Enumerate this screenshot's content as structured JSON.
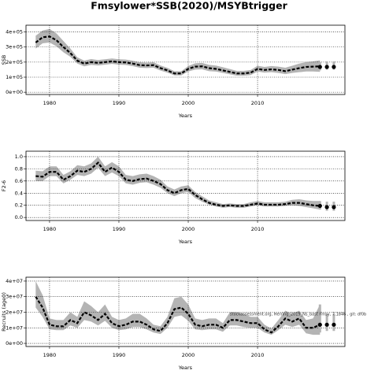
{
  "chart_data": [
    {
      "type": "line",
      "title": "Fmsylower*SSB(2020)/MSYBtrigger",
      "xlabel": "Years",
      "ylabel": "SSB",
      "grid": true,
      "color": "#000000",
      "band_color": "#b4b4b4",
      "x": [
        1978,
        1979,
        1980,
        1981,
        1982,
        1983,
        1984,
        1985,
        1986,
        1987,
        1988,
        1989,
        1990,
        1991,
        1992,
        1993,
        1994,
        1995,
        1996,
        1997,
        1998,
        1999,
        2000,
        2001,
        2002,
        2003,
        2004,
        2005,
        2006,
        2007,
        2008,
        2009,
        2010,
        2011,
        2012,
        2013,
        2014,
        2015,
        2016,
        2017,
        2018,
        2019
      ],
      "values": [
        330000,
        365000,
        370000,
        345000,
        300000,
        260000,
        210000,
        190000,
        200000,
        195000,
        200000,
        205000,
        200000,
        198000,
        190000,
        180000,
        178000,
        180000,
        160000,
        145000,
        125000,
        125000,
        155000,
        170000,
        172000,
        160000,
        155000,
        145000,
        135000,
        125000,
        125000,
        130000,
        155000,
        148000,
        152000,
        148000,
        140000,
        150000,
        160000,
        168000,
        170000,
        172000
      ],
      "lower": [
        290000,
        325000,
        330000,
        305000,
        265000,
        235000,
        190000,
        172000,
        182000,
        178000,
        183000,
        188000,
        183000,
        181000,
        173000,
        163000,
        161000,
        163000,
        144000,
        130000,
        112000,
        112000,
        138000,
        150000,
        152000,
        140000,
        137000,
        128000,
        119000,
        110000,
        110000,
        114000,
        137000,
        130000,
        133000,
        128000,
        120000,
        128000,
        133000,
        138000,
        138000,
        135000
      ],
      "upper": [
        375000,
        410000,
        420000,
        390000,
        340000,
        290000,
        232000,
        210000,
        220000,
        214000,
        219000,
        224000,
        219000,
        217000,
        209000,
        199000,
        197000,
        199000,
        178000,
        162000,
        140000,
        140000,
        174000,
        192000,
        195000,
        182000,
        177000,
        166000,
        154000,
        142000,
        142000,
        148000,
        176000,
        168000,
        174000,
        170000,
        163000,
        176000,
        190000,
        200000,
        205000,
        212000
      ],
      "proj_x": [
        2019,
        2020,
        2021
      ],
      "proj_values": [
        168000,
        168000,
        168000
      ],
      "proj_lower": [
        145000,
        150000,
        150000
      ],
      "proj_upper": [
        200000,
        205000,
        205000
      ],
      "xlim": [
        1976.6,
        2022.6
      ],
      "xticks": [
        1980,
        1990,
        2000,
        2010
      ],
      "ylim": [
        -15000,
        445000
      ],
      "yticks": [
        {
          "value": 0,
          "label": "0e+00"
        },
        {
          "value": 100000,
          "label": "1e+05"
        },
        {
          "value": 200000,
          "label": "2e+05"
        },
        {
          "value": 300000,
          "label": "3e+05"
        },
        {
          "value": 400000,
          "label": "4e+05"
        }
      ]
    },
    {
      "type": "line",
      "xlabel": "Years",
      "ylabel": "F2-6",
      "grid": true,
      "color": "#000000",
      "band_color": "#b4b4b4",
      "x": [
        1978,
        1979,
        1980,
        1981,
        1982,
        1983,
        1984,
        1985,
        1986,
        1987,
        1988,
        1989,
        1990,
        1991,
        1992,
        1993,
        1994,
        1995,
        1996,
        1997,
        1998,
        1999,
        2000,
        2001,
        2002,
        2003,
        2004,
        2005,
        2006,
        2007,
        2008,
        2009,
        2010,
        2011,
        2012,
        2013,
        2014,
        2015,
        2016,
        2017,
        2018,
        2019
      ],
      "values": [
        0.68,
        0.67,
        0.75,
        0.75,
        0.62,
        0.68,
        0.77,
        0.75,
        0.8,
        0.9,
        0.75,
        0.82,
        0.75,
        0.62,
        0.6,
        0.63,
        0.64,
        0.6,
        0.55,
        0.45,
        0.4,
        0.45,
        0.47,
        0.37,
        0.3,
        0.24,
        0.21,
        0.19,
        0.2,
        0.19,
        0.19,
        0.21,
        0.23,
        0.21,
        0.21,
        0.21,
        0.22,
        0.24,
        0.24,
        0.22,
        0.2,
        0.19
      ],
      "lower": [
        0.6,
        0.6,
        0.68,
        0.68,
        0.56,
        0.62,
        0.7,
        0.68,
        0.72,
        0.82,
        0.68,
        0.74,
        0.68,
        0.56,
        0.54,
        0.57,
        0.58,
        0.54,
        0.49,
        0.4,
        0.35,
        0.4,
        0.42,
        0.32,
        0.26,
        0.21,
        0.18,
        0.16,
        0.17,
        0.16,
        0.16,
        0.18,
        0.2,
        0.18,
        0.18,
        0.18,
        0.19,
        0.2,
        0.19,
        0.17,
        0.15,
        0.13
      ],
      "upper": [
        0.77,
        0.76,
        0.84,
        0.84,
        0.7,
        0.76,
        0.86,
        0.84,
        0.89,
        1.0,
        0.84,
        0.91,
        0.84,
        0.7,
        0.68,
        0.71,
        0.72,
        0.68,
        0.62,
        0.51,
        0.46,
        0.51,
        0.53,
        0.42,
        0.35,
        0.28,
        0.25,
        0.22,
        0.23,
        0.22,
        0.22,
        0.25,
        0.27,
        0.25,
        0.25,
        0.25,
        0.26,
        0.29,
        0.3,
        0.28,
        0.27,
        0.27
      ],
      "proj_x": [
        2019,
        2020,
        2021
      ],
      "proj_values": [
        0.19,
        0.17,
        0.17
      ],
      "proj_lower": [
        0.13,
        0.11,
        0.11
      ],
      "proj_upper": [
        0.27,
        0.26,
        0.26
      ],
      "xlim": [
        1976.6,
        2022.6
      ],
      "xticks": [
        1980,
        1990,
        2000,
        2010
      ],
      "ylim": [
        -0.05,
        1.09
      ],
      "yticks": [
        {
          "value": 0,
          "label": "0.0"
        },
        0.2,
        0.4,
        0.6,
        0.8,
        {
          "value": 1,
          "label": "1.0"
        }
      ]
    },
    {
      "type": "line",
      "xlabel": "Years",
      "ylabel": "Recruits (age0)",
      "grid": true,
      "color": "#000000",
      "band_color": "#b4b4b4",
      "annotation": "stockassessment.org, Herring_2019_Ns_bast Fmsy, 7.1846 , git: df0b",
      "x": [
        1978,
        1979,
        1980,
        1981,
        1982,
        1983,
        1984,
        1985,
        1986,
        1987,
        1988,
        1989,
        1990,
        1991,
        1992,
        1993,
        1994,
        1995,
        1996,
        1997,
        1998,
        1999,
        2000,
        2001,
        2002,
        2003,
        2004,
        2005,
        2006,
        2007,
        2008,
        2009,
        2010,
        2011,
        2012,
        2013,
        2014,
        2015,
        2016,
        2017,
        2018,
        2019
      ],
      "values": [
        30000000,
        23000000,
        12000000,
        11000000,
        11000000,
        15000000,
        13000000,
        20000000,
        18000000,
        15000000,
        19000000,
        13000000,
        11000000,
        12000000,
        14000000,
        14000000,
        12000000,
        9000000,
        8000000,
        13000000,
        22000000,
        23000000,
        19000000,
        12000000,
        11000000,
        12000000,
        12000000,
        10000000,
        15000000,
        15000000,
        14000000,
        13000000,
        13000000,
        9000000,
        7000000,
        11000000,
        16000000,
        14000000,
        16000000,
        10000000,
        10000000,
        12000000
      ],
      "lower": [
        23000000,
        17000000,
        9000000,
        8500000,
        8500000,
        11500000,
        10000000,
        15000000,
        14000000,
        11500000,
        14500000,
        10000000,
        8500000,
        9000000,
        10500000,
        10500000,
        9000000,
        7000000,
        6000000,
        10000000,
        17000000,
        18000000,
        14500000,
        9000000,
        8500000,
        9000000,
        9000000,
        7500000,
        11500000,
        11500000,
        10500000,
        10000000,
        10000000,
        7000000,
        5500000,
        8500000,
        12000000,
        10500000,
        12000000,
        6500000,
        5500000,
        5500000
      ],
      "upper": [
        40000000,
        31000000,
        16000000,
        15000000,
        15000000,
        20000000,
        17000000,
        27000000,
        24000000,
        20000000,
        25000000,
        17000000,
        15000000,
        16000000,
        19000000,
        19000000,
        16000000,
        12000000,
        11000000,
        17000000,
        29000000,
        30000000,
        25000000,
        16000000,
        15000000,
        16000000,
        16000000,
        13000000,
        20000000,
        20000000,
        19000000,
        17000000,
        17000000,
        12000000,
        9500000,
        15000000,
        21000000,
        19000000,
        21000000,
        15000000,
        16000000,
        25000000
      ],
      "proj_x": [
        2019,
        2020,
        2021
      ],
      "proj_values": [
        12000000,
        12000000,
        12000000
      ],
      "proj_lower": [
        7000000,
        8000000,
        8000000
      ],
      "proj_upper": [
        25000000,
        19000000,
        19000000
      ],
      "xlim": [
        1976.6,
        2022.6
      ],
      "xticks": [
        1980,
        1990,
        2000,
        2010
      ],
      "ylim": [
        -2000000,
        42500000
      ],
      "yticks": [
        {
          "value": 0,
          "label": "0e+00"
        },
        {
          "value": 10000000,
          "label": "1e+07"
        },
        {
          "value": 20000000,
          "label": "2e+07"
        },
        {
          "value": 30000000,
          "label": "3e+07"
        },
        {
          "value": 40000000,
          "label": "4e+07"
        }
      ]
    }
  ]
}
